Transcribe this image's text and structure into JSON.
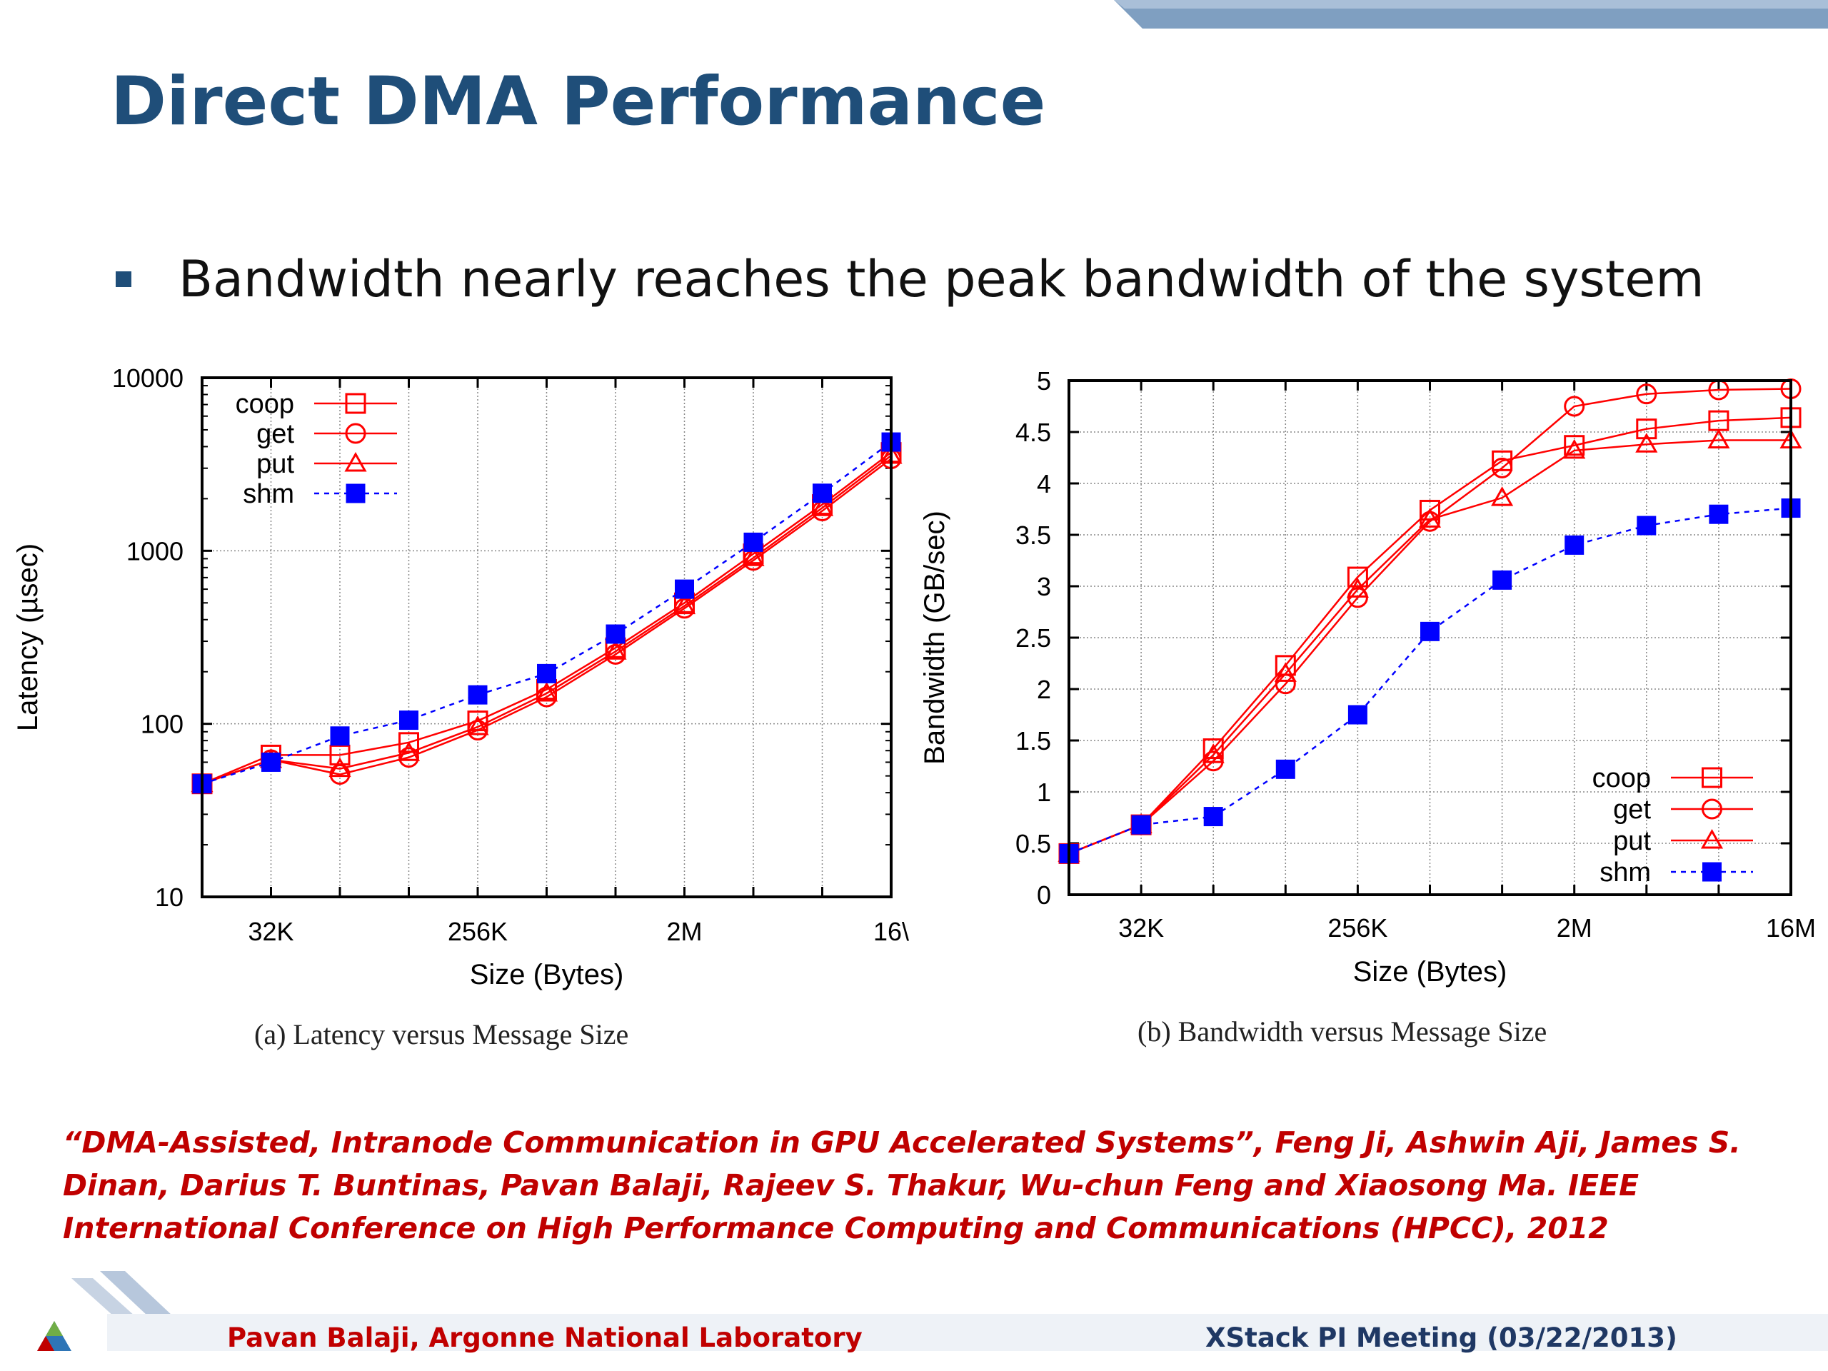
{
  "slide": {
    "title": "Direct DMA Performance",
    "bullet": "Bandwidth nearly reaches the peak bandwidth of the system",
    "citation": "“DMA-Assisted, Intranode Communication in GPU Accelerated Systems”, Feng Ji, Ashwin Aji, James S. Dinan, Darius T. Buntinas, Pavan Balaji, Rajeev S. Thakur, Wu-chun Feng and Xiaosong Ma. IEEE International Conference on High Performance Computing and Communications (HPCC), 2012",
    "footer_left": "Pavan Balaji, Argonne National Laboratory",
    "footer_right": "XStack PI Meeting (03/22/2013)"
  },
  "colors": {
    "title": "#1f4e79",
    "red_series": "#ff0000",
    "blue_series": "#0000ff",
    "citation": "#c00000",
    "footer_right": "#1f3864"
  },
  "chart_data": [
    {
      "type": "line",
      "caption": "(a) Latency versus Message Size",
      "xlabel": "Size (Bytes)",
      "ylabel": "Latency (µsec)",
      "yscale": "log",
      "ylim": [
        10,
        10000
      ],
      "yticks": [
        "10",
        "100",
        "1000",
        "10000"
      ],
      "x": [
        "16K",
        "32K",
        "64K",
        "128K",
        "256K",
        "512K",
        "1M",
        "2M",
        "4M",
        "8M",
        "16M"
      ],
      "xticks": [
        "32K",
        "256K",
        "2M",
        "16M"
      ],
      "xtick_labels": [
        "32K",
        "256K",
        "2M",
        "16\\"
      ],
      "grid": true,
      "legend_position": "top-left",
      "series": [
        {
          "name": "coop",
          "marker": "square-open",
          "color": "#ff0000",
          "dash": "solid",
          "values": [
            45,
            66,
            66,
            78,
            104,
            158,
            275,
            500,
            960,
            1850,
            3700
          ]
        },
        {
          "name": "get",
          "marker": "circle-open",
          "color": "#ff0000",
          "dash": "solid",
          "values": [
            45,
            62,
            51,
            64,
            92,
            143,
            252,
            465,
            880,
            1700,
            3400
          ]
        },
        {
          "name": "put",
          "marker": "triangle-open",
          "color": "#ff0000",
          "dash": "solid",
          "values": [
            45,
            62,
            55,
            68,
            96,
            150,
            262,
            480,
            910,
            1770,
            3550
          ]
        },
        {
          "name": "shm",
          "marker": "square-filled",
          "color": "#0000ff",
          "dash": "dashed",
          "values": [
            45,
            60,
            85,
            105,
            147,
            195,
            330,
            600,
            1120,
            2150,
            4250
          ]
        }
      ]
    },
    {
      "type": "line",
      "caption": "(b) Bandwidth versus Message Size",
      "xlabel": "Size (Bytes)",
      "ylabel": "Bandwidth (GB/sec)",
      "yscale": "linear",
      "ylim": [
        0,
        5
      ],
      "yticks": [
        "0",
        "0.5",
        "1",
        "1.5",
        "2",
        "2.5",
        "3",
        "3.5",
        "4",
        "4.5",
        "5"
      ],
      "x": [
        "16K",
        "32K",
        "64K",
        "128K",
        "256K",
        "512K",
        "1M",
        "2M",
        "4M",
        "8M",
        "16M"
      ],
      "xticks": [
        "32K",
        "256K",
        "2M",
        "16M"
      ],
      "xtick_labels": [
        "32K",
        "256K",
        "2M",
        "16M"
      ],
      "grid": true,
      "legend_position": "bottom-right",
      "series": [
        {
          "name": "coop",
          "marker": "square-open",
          "color": "#ff0000",
          "dash": "solid",
          "values": [
            0.4,
            0.68,
            1.42,
            2.23,
            3.09,
            3.74,
            4.22,
            4.37,
            4.53,
            4.61,
            4.64
          ]
        },
        {
          "name": "get",
          "marker": "circle-open",
          "color": "#ff0000",
          "dash": "solid",
          "values": [
            0.4,
            0.68,
            1.3,
            2.05,
            2.89,
            3.63,
            4.15,
            4.75,
            4.87,
            4.91,
            4.92
          ]
        },
        {
          "name": "put",
          "marker": "triangle-open",
          "color": "#ff0000",
          "dash": "solid",
          "values": [
            0.4,
            0.68,
            1.36,
            2.15,
            2.97,
            3.65,
            3.86,
            4.32,
            4.38,
            4.42,
            4.42
          ]
        },
        {
          "name": "shm",
          "marker": "square-filled",
          "color": "#0000ff",
          "dash": "dashed",
          "values": [
            0.4,
            0.68,
            0.76,
            1.22,
            1.75,
            2.56,
            3.06,
            3.4,
            3.59,
            3.7,
            3.76
          ]
        }
      ]
    }
  ]
}
